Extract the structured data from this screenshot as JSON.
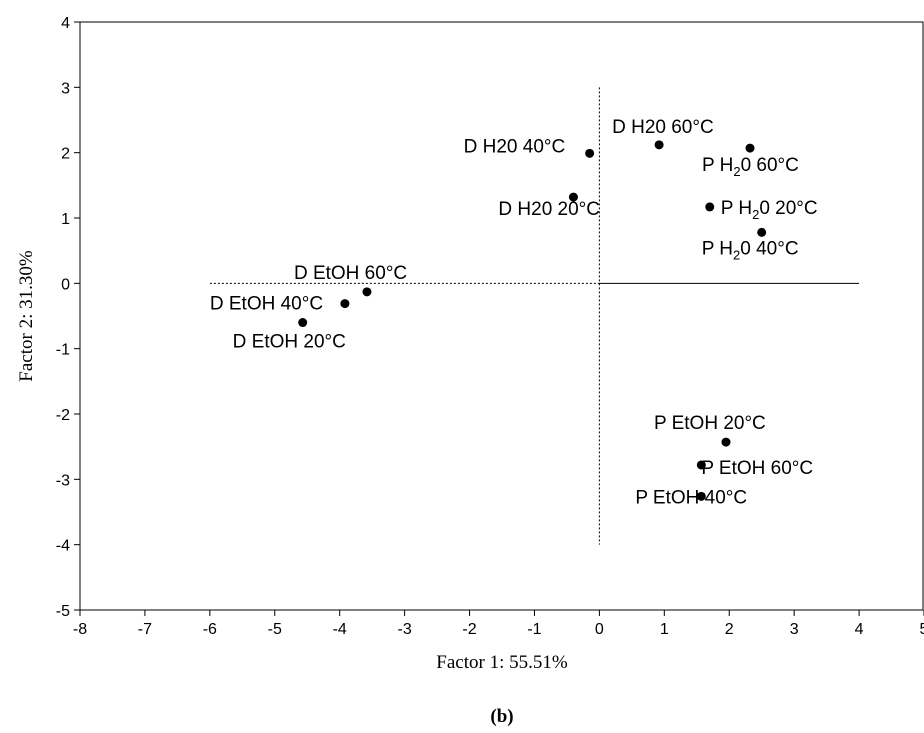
{
  "chart_data": {
    "type": "scatter",
    "xlabel": "Factor 1: 55.51%",
    "ylabel": "Factor 2: 31.30%",
    "panel_label": "(b)",
    "xlim": [
      -8,
      5
    ],
    "ylim": [
      -5,
      4
    ],
    "x_ticks": [
      -8,
      -7,
      -6,
      -5,
      -4,
      -3,
      -2,
      -1,
      0,
      1,
      2,
      3,
      4,
      5
    ],
    "y_ticks": [
      -5,
      -4,
      -3,
      -2,
      -1,
      0,
      1,
      2,
      3,
      4
    ],
    "grid": false,
    "reference_lines": [
      {
        "orientation": "horizontal",
        "value": 0,
        "from": -6,
        "to": 4,
        "dashed_until": 0
      },
      {
        "orientation": "vertical",
        "value": 0,
        "from": -4,
        "to": 3
      }
    ],
    "points": [
      {
        "label": "D  H20 60°C",
        "x": 0.92,
        "y": 2.12
      },
      {
        "label": "D  H20 40°C",
        "x": -0.15,
        "y": 1.99
      },
      {
        "label": "D  H20 20°C",
        "x": -0.4,
        "y": 1.32
      },
      {
        "label": "P  H20 60°C",
        "x": 2.32,
        "y": 2.07
      },
      {
        "label": "P  H20 20°C",
        "x": 1.7,
        "y": 1.17
      },
      {
        "label": "P  H20 40°C",
        "x": 2.5,
        "y": 0.78
      },
      {
        "label": "D  EtOH 60°C",
        "x": -3.58,
        "y": -0.13
      },
      {
        "label": "D  EtOH 40°C",
        "x": -3.92,
        "y": -0.31
      },
      {
        "label": "D  EtOH 20°C",
        "x": -4.57,
        "y": -0.6
      },
      {
        "label": "P  EtOH 20°C",
        "x": 1.95,
        "y": -2.43
      },
      {
        "label": "P  EtOH 60°C",
        "x": 1.57,
        "y": -2.78
      },
      {
        "label": "P  EtOH 40°C",
        "x": 1.57,
        "y": -3.26
      }
    ]
  }
}
